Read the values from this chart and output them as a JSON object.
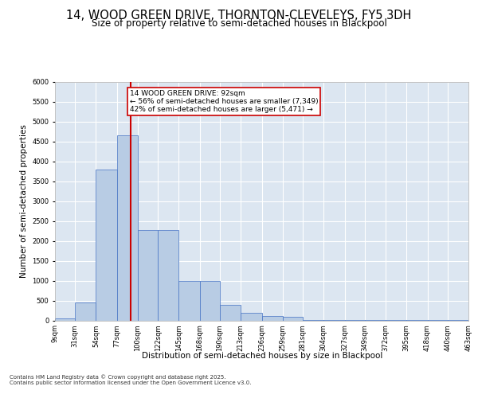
{
  "title": "14, WOOD GREEN DRIVE, THORNTON-CLEVELEYS, FY5 3DH",
  "subtitle": "Size of property relative to semi-detached houses in Blackpool",
  "xlabel": "Distribution of semi-detached houses by size in Blackpool",
  "ylabel": "Number of semi-detached properties",
  "bin_edges": [
    9,
    31,
    54,
    77,
    100,
    122,
    145,
    168,
    190,
    213,
    236,
    259,
    281,
    304,
    327,
    349,
    372,
    395,
    418,
    440,
    463
  ],
  "bar_heights": [
    50,
    450,
    3800,
    4650,
    2280,
    2280,
    1000,
    1000,
    400,
    200,
    110,
    100,
    10,
    5,
    5,
    5,
    5,
    5,
    5,
    5
  ],
  "bar_color": "#b8cce4",
  "bar_edge_color": "#4472c4",
  "property_size": 92,
  "annotation_text": "14 WOOD GREEN DRIVE: 92sqm\n← 56% of semi-detached houses are smaller (7,349)\n42% of semi-detached houses are larger (5,471) →",
  "annotation_box_color": "#ffffff",
  "annotation_box_edge": "#cc0000",
  "vline_color": "#cc0000",
  "ylim": [
    0,
    6000
  ],
  "yticks": [
    0,
    500,
    1000,
    1500,
    2000,
    2500,
    3000,
    3500,
    4000,
    4500,
    5000,
    5500,
    6000
  ],
  "background_color": "#dce6f1",
  "footer_text": "Contains HM Land Registry data © Crown copyright and database right 2025.\nContains public sector information licensed under the Open Government Licence v3.0.",
  "title_fontsize": 10.5,
  "subtitle_fontsize": 8.5,
  "tick_label_fontsize": 6.0,
  "ylabel_fontsize": 7.5,
  "xlabel_fontsize": 7.5,
  "annotation_fontsize": 6.5
}
